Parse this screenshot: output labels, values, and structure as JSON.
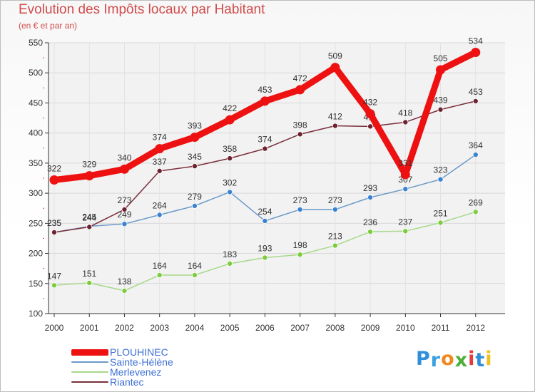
{
  "header": {
    "title": "Evolution des Impôts locaux par Habitant",
    "subtitle": "(en € et par an)"
  },
  "logo": {
    "text": "Proxiti",
    "letters": [
      "P",
      "r",
      "o",
      "x",
      "i",
      "t",
      "i"
    ],
    "colors": [
      "#2f8fd8",
      "#3aa0df",
      "#f08a1f",
      "#4caf3a",
      "#e23c3c",
      "#2f8fd8",
      "#f0c020"
    ]
  },
  "chart_data": {
    "type": "line",
    "title": "Evolution des Impôts locaux par Habitant",
    "subtitle": "(en € et par an)",
    "xlabel": "",
    "ylabel": "",
    "ylim": [
      100,
      550
    ],
    "yticks": [
      100,
      150,
      200,
      250,
      300,
      350,
      400,
      450,
      500,
      550
    ],
    "grid": true,
    "legend_position": "bottom-left",
    "categories": [
      "2000",
      "2001",
      "2002",
      "2003",
      "2004",
      "2005",
      "2006",
      "2007",
      "2008",
      "2009",
      "2010",
      "2011",
      "2012"
    ],
    "series": [
      {
        "name": "PLOUHINEC",
        "color": "#ee1111",
        "dot_color": "#ee1111",
        "emphasis": true,
        "values": [
          322,
          329,
          340,
          374,
          393,
          422,
          453,
          472,
          509,
          432,
          331,
          505,
          534
        ]
      },
      {
        "name": "Sainte-Hélène",
        "color": "#6a9ac9",
        "dot_color": "#3b82d1",
        "emphasis": false,
        "values": [
          235,
          245,
          249,
          264,
          279,
          302,
          254,
          273,
          273,
          293,
          307,
          323,
          364
        ]
      },
      {
        "name": "Merlevenez",
        "color": "#a8d88a",
        "dot_color": "#7dcc3e",
        "emphasis": false,
        "values": [
          147,
          151,
          138,
          164,
          164,
          183,
          193,
          198,
          213,
          236,
          237,
          251,
          269
        ]
      },
      {
        "name": "Riantec",
        "color": "#7a2e3a",
        "dot_color": "#6e2330",
        "emphasis": false,
        "values": [
          235,
          244,
          273,
          337,
          345,
          358,
          374,
          398,
          412,
          411,
          418,
          439,
          453
        ]
      }
    ]
  }
}
